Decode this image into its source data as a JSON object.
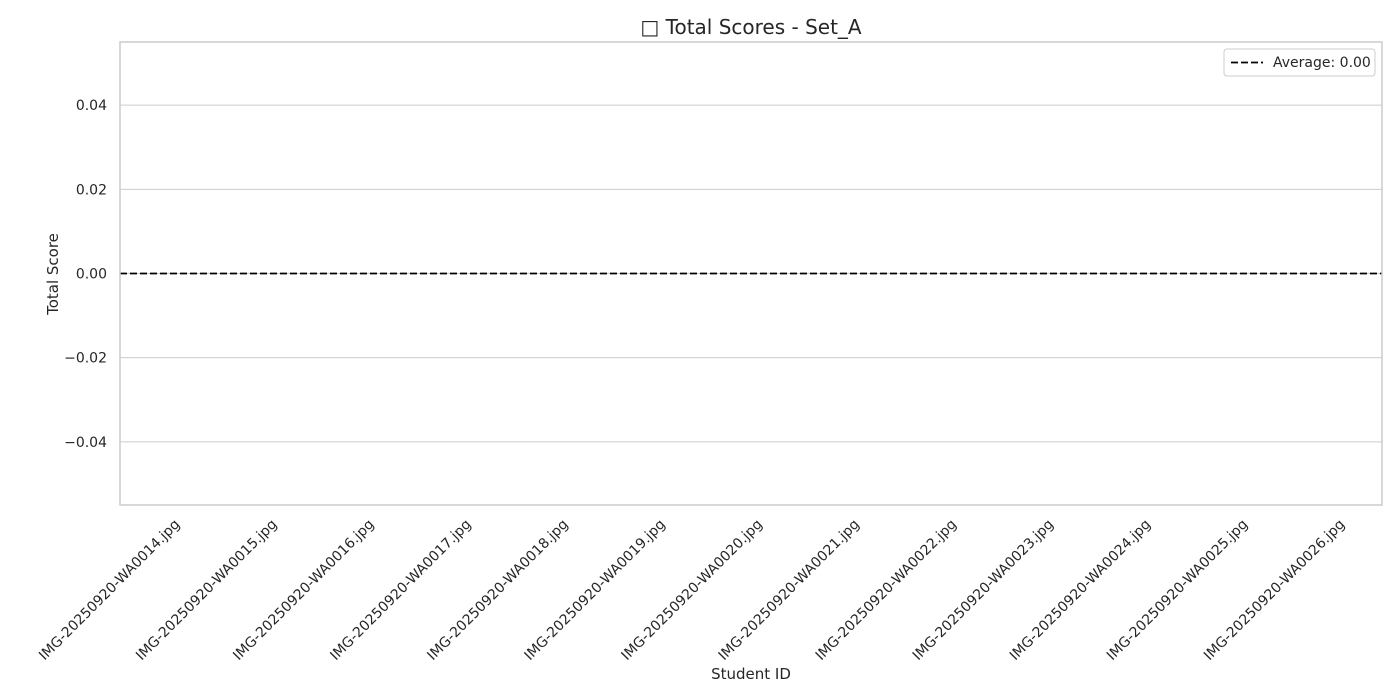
{
  "chart_data": {
    "type": "bar",
    "title": "□ Total Scores - Set_A",
    "xlabel": "Student ID",
    "ylabel": "Total Score",
    "categories": [
      "IMG-20250920-WA0014.jpg",
      "IMG-20250920-WA0015.jpg",
      "IMG-20250920-WA0016.jpg",
      "IMG-20250920-WA0017.jpg",
      "IMG-20250920-WA0018.jpg",
      "IMG-20250920-WA0019.jpg",
      "IMG-20250920-WA0020.jpg",
      "IMG-20250920-WA0021.jpg",
      "IMG-20250920-WA0022.jpg",
      "IMG-20250920-WA0023.jpg",
      "IMG-20250920-WA0024.jpg",
      "IMG-20250920-WA0025.jpg",
      "IMG-20250920-WA0026.jpg"
    ],
    "values": [
      0,
      0,
      0,
      0,
      0,
      0,
      0,
      0,
      0,
      0,
      0,
      0,
      0
    ],
    "ylim": [
      -0.055,
      0.055
    ],
    "yticks": [
      -0.04,
      -0.02,
      0.0,
      0.02,
      0.04
    ],
    "ytick_labels": [
      "−0.04",
      "−0.02",
      "0.00",
      "0.02",
      "0.04"
    ],
    "average": {
      "value": 0.0,
      "label": "Average: 0.00",
      "style": "dashed",
      "color": "#000000"
    },
    "grid": "y",
    "legend_position": "top-right",
    "colors": {
      "grid": "#cccccc",
      "frame": "#cccccc",
      "text": "#262626",
      "legend_border": "#cccccc"
    }
  }
}
